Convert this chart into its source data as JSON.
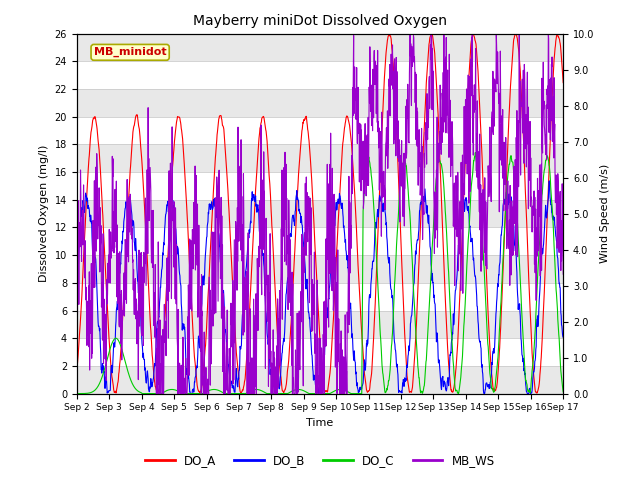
{
  "title": "Mayberry miniDot Dissolved Oxygen",
  "xlabel": "Time",
  "ylabel_left": "Dissolved Oxygen (mg/l)",
  "ylabel_right": "Wind Speed (m/s)",
  "ylim_left": [
    0,
    26
  ],
  "ylim_right": [
    0,
    10
  ],
  "yticks_left": [
    0,
    2,
    4,
    6,
    8,
    10,
    12,
    14,
    16,
    18,
    20,
    22,
    24,
    26
  ],
  "yticks_right": [
    0.0,
    1.0,
    2.0,
    3.0,
    4.0,
    5.0,
    6.0,
    7.0,
    8.0,
    9.0,
    10.0
  ],
  "xtick_labels": [
    "Sep 2",
    "Sep 3",
    "Sep 4",
    "Sep 5",
    "Sep 6",
    "Sep 7",
    "Sep 8",
    "Sep 9",
    "Sep 10",
    "Sep 11",
    "Sep 12",
    "Sep 13",
    "Sep 14",
    "Sep 15",
    "Sep 16",
    "Sep 17"
  ],
  "n_days": 15,
  "annotation_text": "MB_minidot",
  "annotation_color": "#cc0000",
  "annotation_bg": "#ffffcc",
  "annotation_border": "#aaaa00",
  "line_colors": {
    "DO_A": "#ff0000",
    "DO_B": "#0000ff",
    "DO_C": "#00cc00",
    "MB_WS": "#9900cc"
  },
  "legend_labels": [
    "DO_A",
    "DO_B",
    "DO_C",
    "MB_WS"
  ],
  "bg_color": "#ffffff",
  "grid_color": "#cccccc",
  "stripe_color": "#e8e8e8"
}
